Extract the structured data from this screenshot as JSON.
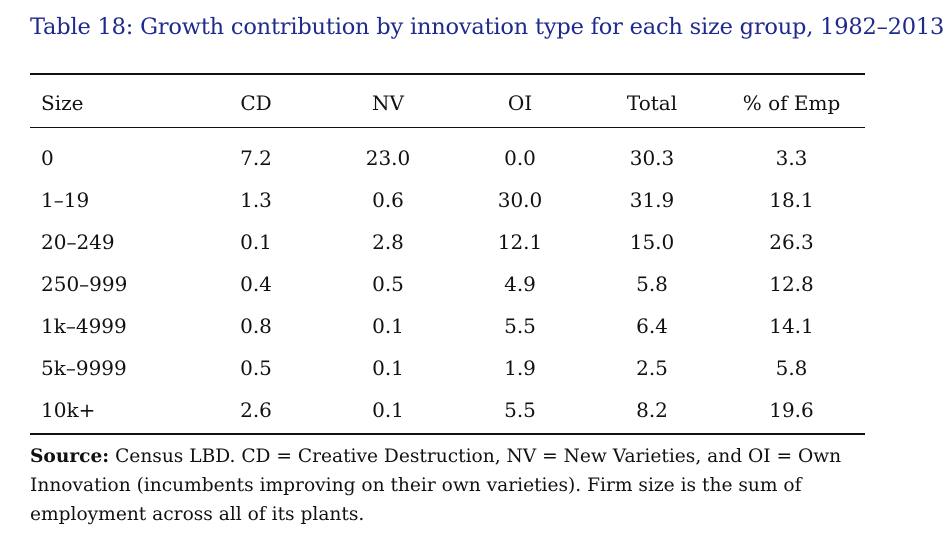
{
  "caption": "Table 18: Growth contribution by innovation type for each size group, 1982–2013",
  "table": {
    "headers": [
      "Size",
      "CD",
      "NV",
      "OI",
      "Total",
      "% of Emp"
    ],
    "rows": [
      [
        "0",
        "7.2",
        "23.0",
        "0.0",
        "30.3",
        "3.3"
      ],
      [
        "1–19",
        "1.3",
        "0.6",
        "30.0",
        "31.9",
        "18.1"
      ],
      [
        "20–249",
        "0.1",
        "2.8",
        "12.1",
        "15.0",
        "26.3"
      ],
      [
        "250–999",
        "0.4",
        "0.5",
        "4.9",
        "5.8",
        "12.8"
      ],
      [
        "1k–4999",
        "0.8",
        "0.1",
        "5.5",
        "6.4",
        "14.1"
      ],
      [
        "5k–9999",
        "0.5",
        "0.1",
        "1.9",
        "2.5",
        "5.8"
      ],
      [
        "10k+",
        "2.6",
        "0.1",
        "5.5",
        "8.2",
        "19.6"
      ]
    ]
  },
  "note": {
    "label": "Source:",
    "text": " Census LBD. CD = Creative Destruction, NV = New Varieties, and OI = Own Innovation (incumbents improving on their own varieties). Firm size is the sum of employment across all of its plants."
  },
  "colors": {
    "caption": "#1e2a8c",
    "text": "#111111",
    "rules": "#111111"
  }
}
